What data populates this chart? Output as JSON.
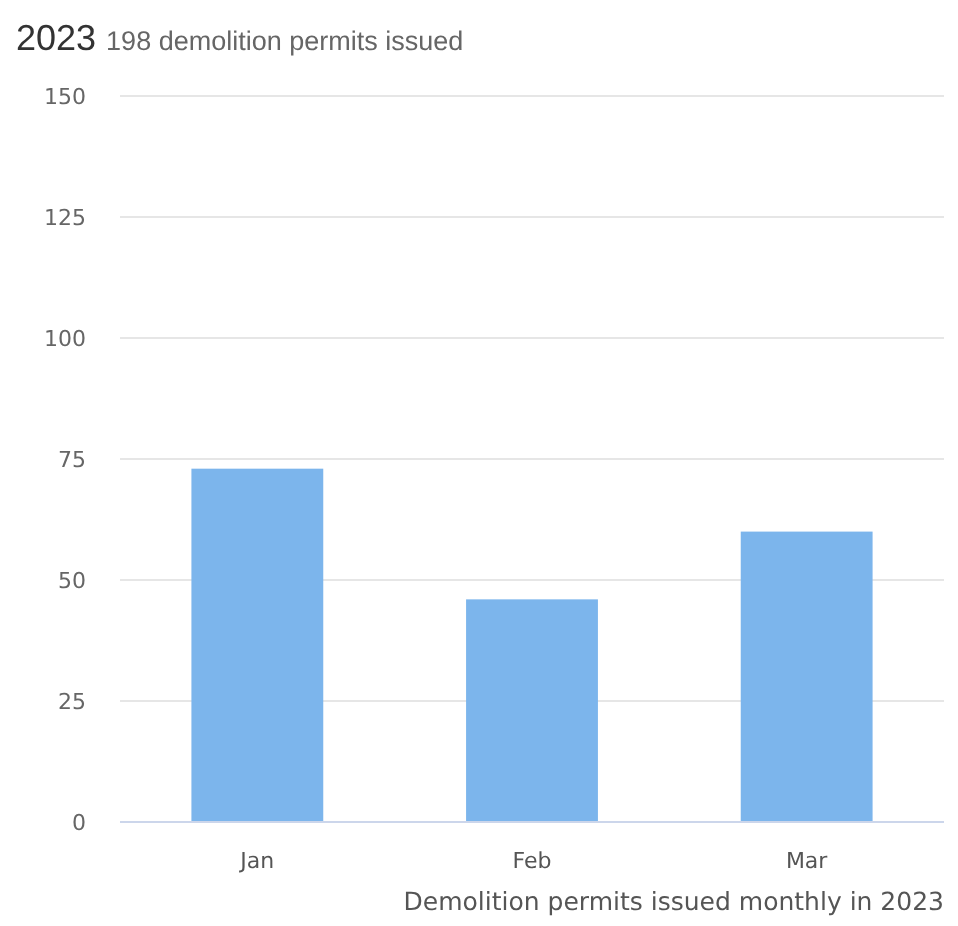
{
  "chart_data": {
    "type": "bar",
    "title": "2023",
    "subtitle": "198 demolition permits issued",
    "xlabel": "Demolition permits issued monthly in 2023",
    "categories": [
      "Jan",
      "Feb",
      "Mar"
    ],
    "values": [
      73,
      46,
      60
    ],
    "color": "#7cb5ec",
    "ylim": [
      0,
      150
    ],
    "yticks": [
      0,
      25,
      50,
      75,
      100,
      125,
      150
    ],
    "grid": "y"
  }
}
